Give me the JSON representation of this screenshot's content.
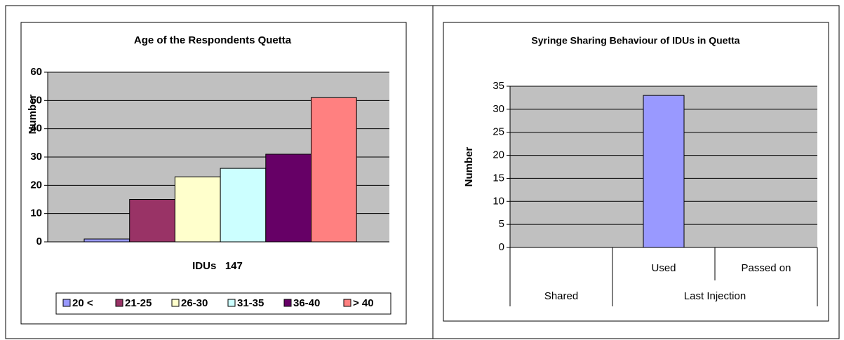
{
  "chart_data": [
    {
      "type": "bar",
      "title": "Age of the Respondents Quetta",
      "y_label": "Number",
      "x_label": "IDUs   147",
      "series": [
        {
          "name": "20 <",
          "color": "#9999ff",
          "values": [
            1
          ]
        },
        {
          "name": "21-25",
          "color": "#993366",
          "values": [
            15
          ]
        },
        {
          "name": "26-30",
          "color": "#ffffcc",
          "values": [
            23
          ]
        },
        {
          "name": "31-35",
          "color": "#ccffff",
          "values": [
            26
          ]
        },
        {
          "name": "36-40",
          "color": "#660066",
          "values": [
            31
          ]
        },
        {
          "name": "> 40",
          "color": "#ff8080",
          "values": [
            51
          ]
        }
      ],
      "ylim": [
        0,
        60
      ],
      "yticks": [
        0,
        10,
        20,
        30,
        40,
        50,
        60
      ],
      "grid": true,
      "legend": "bottom"
    },
    {
      "type": "bar",
      "title": "Syringe Sharing Behaviour of IDUs in Quetta",
      "y_label": "Number",
      "categories": [
        null,
        "Used",
        "Passed on"
      ],
      "groups": [
        {
          "name": "Shared",
          "size": 1
        },
        {
          "name": "Last Injection",
          "size": 2
        }
      ],
      "values": [
        null,
        33,
        null
      ],
      "color": "#9999ff",
      "ylim": [
        0,
        35
      ],
      "yticks": [
        0,
        5,
        10,
        15,
        20,
        25,
        30,
        35
      ],
      "grid": true
    }
  ]
}
